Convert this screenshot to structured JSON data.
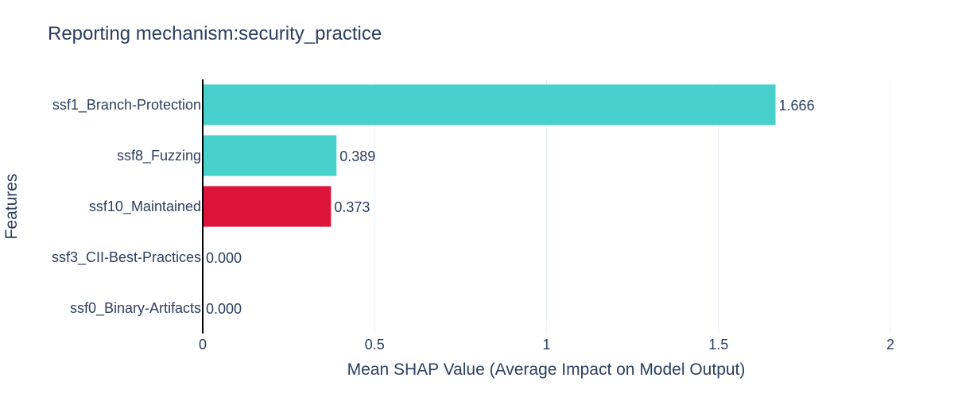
{
  "chart_data": {
    "type": "bar",
    "orientation": "horizontal",
    "title": "Reporting mechanism:security_practice",
    "xlabel": "Mean SHAP Value (Average Impact on Model Output)",
    "ylabel": "Features",
    "xlim": [
      0,
      2
    ],
    "x_ticks": [
      0,
      0.5,
      1,
      1.5,
      2
    ],
    "x_tick_labels": [
      "0",
      "0.5",
      "1",
      "1.5",
      "2"
    ],
    "grid": true,
    "categories": [
      "ssf1_Branch-Protection",
      "ssf8_Fuzzing",
      "ssf10_Maintained",
      "ssf3_CII-Best-Practices",
      "ssf0_Binary-Artifacts"
    ],
    "values": [
      1.666,
      0.389,
      0.373,
      0.0,
      0.0
    ],
    "value_labels": [
      "1.666",
      "0.389",
      "0.373",
      "0.000",
      "0.000"
    ],
    "colors": [
      "#48d1cc",
      "#48d1cc",
      "#dc143c",
      "#48d1cc",
      "#48d1cc"
    ]
  }
}
